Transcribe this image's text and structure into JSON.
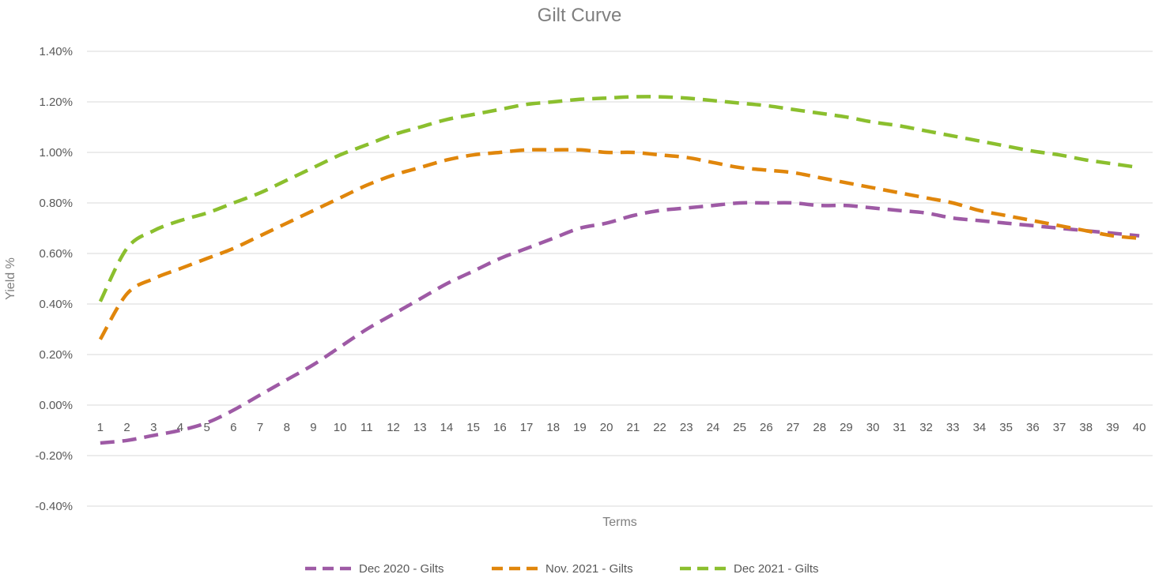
{
  "chart_data": {
    "type": "line",
    "title": "Gilt Curve",
    "xlabel": "Terms",
    "ylabel": "Yield %",
    "ylim": [
      -0.4,
      1.4
    ],
    "yticks": [
      -0.4,
      -0.2,
      0.0,
      0.2,
      0.4,
      0.6,
      0.8,
      1.0,
      1.2,
      1.4
    ],
    "ytick_labels": [
      "-0.40%",
      "-0.20%",
      "0.00%",
      "0.20%",
      "0.40%",
      "0.60%",
      "0.80%",
      "1.00%",
      "1.20%",
      "1.40%"
    ],
    "x": [
      1,
      2,
      3,
      4,
      5,
      6,
      7,
      8,
      9,
      10,
      11,
      12,
      13,
      14,
      15,
      16,
      17,
      18,
      19,
      20,
      21,
      22,
      23,
      24,
      25,
      26,
      27,
      28,
      29,
      30,
      31,
      32,
      33,
      34,
      35,
      36,
      37,
      38,
      39,
      40
    ],
    "grid": true,
    "legend_position": "bottom",
    "series": [
      {
        "name": "Dec 2020 - Gilts",
        "color": "#9e5aa5",
        "values": [
          -0.15,
          -0.14,
          -0.12,
          -0.1,
          -0.07,
          -0.02,
          0.04,
          0.1,
          0.16,
          0.23,
          0.3,
          0.36,
          0.42,
          0.48,
          0.53,
          0.58,
          0.62,
          0.66,
          0.7,
          0.72,
          0.75,
          0.77,
          0.78,
          0.79,
          0.8,
          0.8,
          0.8,
          0.79,
          0.79,
          0.78,
          0.77,
          0.76,
          0.74,
          0.73,
          0.72,
          0.71,
          0.7,
          0.69,
          0.68,
          0.67
        ]
      },
      {
        "name": "Nov. 2021 - Gilts",
        "color": "#e0860b",
        "values": [
          0.26,
          0.44,
          0.5,
          0.54,
          0.58,
          0.62,
          0.67,
          0.72,
          0.77,
          0.82,
          0.87,
          0.91,
          0.94,
          0.97,
          0.99,
          1.0,
          1.01,
          1.01,
          1.01,
          1.0,
          1.0,
          0.99,
          0.98,
          0.96,
          0.94,
          0.93,
          0.92,
          0.9,
          0.88,
          0.86,
          0.84,
          0.82,
          0.8,
          0.77,
          0.75,
          0.73,
          0.71,
          0.69,
          0.67,
          0.66
        ]
      },
      {
        "name": "Dec 2021 - Gilts",
        "color": "#8bbf2e",
        "values": [
          0.41,
          0.62,
          0.69,
          0.73,
          0.76,
          0.8,
          0.84,
          0.89,
          0.94,
          0.99,
          1.03,
          1.07,
          1.1,
          1.13,
          1.15,
          1.17,
          1.19,
          1.2,
          1.21,
          1.215,
          1.22,
          1.22,
          1.215,
          1.205,
          1.195,
          1.185,
          1.17,
          1.155,
          1.14,
          1.12,
          1.105,
          1.085,
          1.065,
          1.045,
          1.025,
          1.005,
          0.99,
          0.97,
          0.955,
          0.94
        ]
      }
    ]
  }
}
